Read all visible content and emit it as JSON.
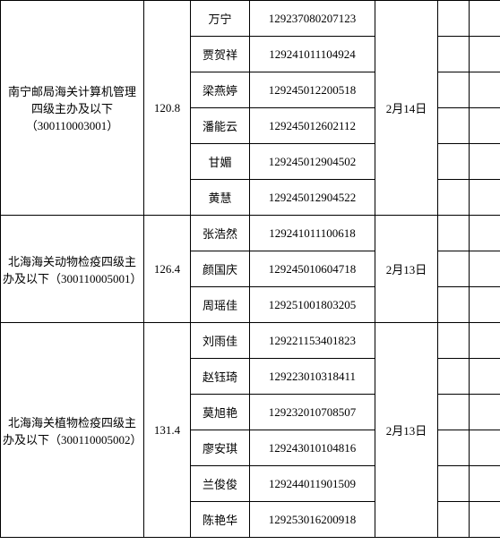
{
  "groups": [
    {
      "position": "南宁邮局海关计算机管理四级主办及以下（300110003001）",
      "score": "120.8",
      "date": "2月14日",
      "rows": [
        {
          "name": "万宁",
          "id": "129237080207123"
        },
        {
          "name": "贾贺祥",
          "id": "129241011104924"
        },
        {
          "name": "梁燕婷",
          "id": "129245012200518"
        },
        {
          "name": "潘能云",
          "id": "129245012602112"
        },
        {
          "name": "甘媚",
          "id": "129245012904502"
        },
        {
          "name": "黄慧",
          "id": "129245012904522"
        }
      ]
    },
    {
      "position": "北海海关动物检疫四级主办及以下（300110005001）",
      "score": "126.4",
      "date": "2月13日",
      "rows": [
        {
          "name": "张浩然",
          "id": "129241011100618"
        },
        {
          "name": "颜国庆",
          "id": "129245010604718"
        },
        {
          "name": "周瑶佳",
          "id": "129251001803205"
        }
      ]
    },
    {
      "position": "北海海关植物检疫四级主办及以下（300110005002）",
      "score": "131.4",
      "date": "2月13日",
      "rows": [
        {
          "name": "刘雨佳",
          "id": "129221153401823"
        },
        {
          "name": "赵钰琦",
          "id": "129223010318411"
        },
        {
          "name": "莫旭艳",
          "id": "129232010708507"
        },
        {
          "name": "廖安琪",
          "id": "129243010104816"
        },
        {
          "name": "兰俊俊",
          "id": "129244011901509"
        },
        {
          "name": "陈艳华",
          "id": "129253016200918"
        }
      ]
    }
  ]
}
